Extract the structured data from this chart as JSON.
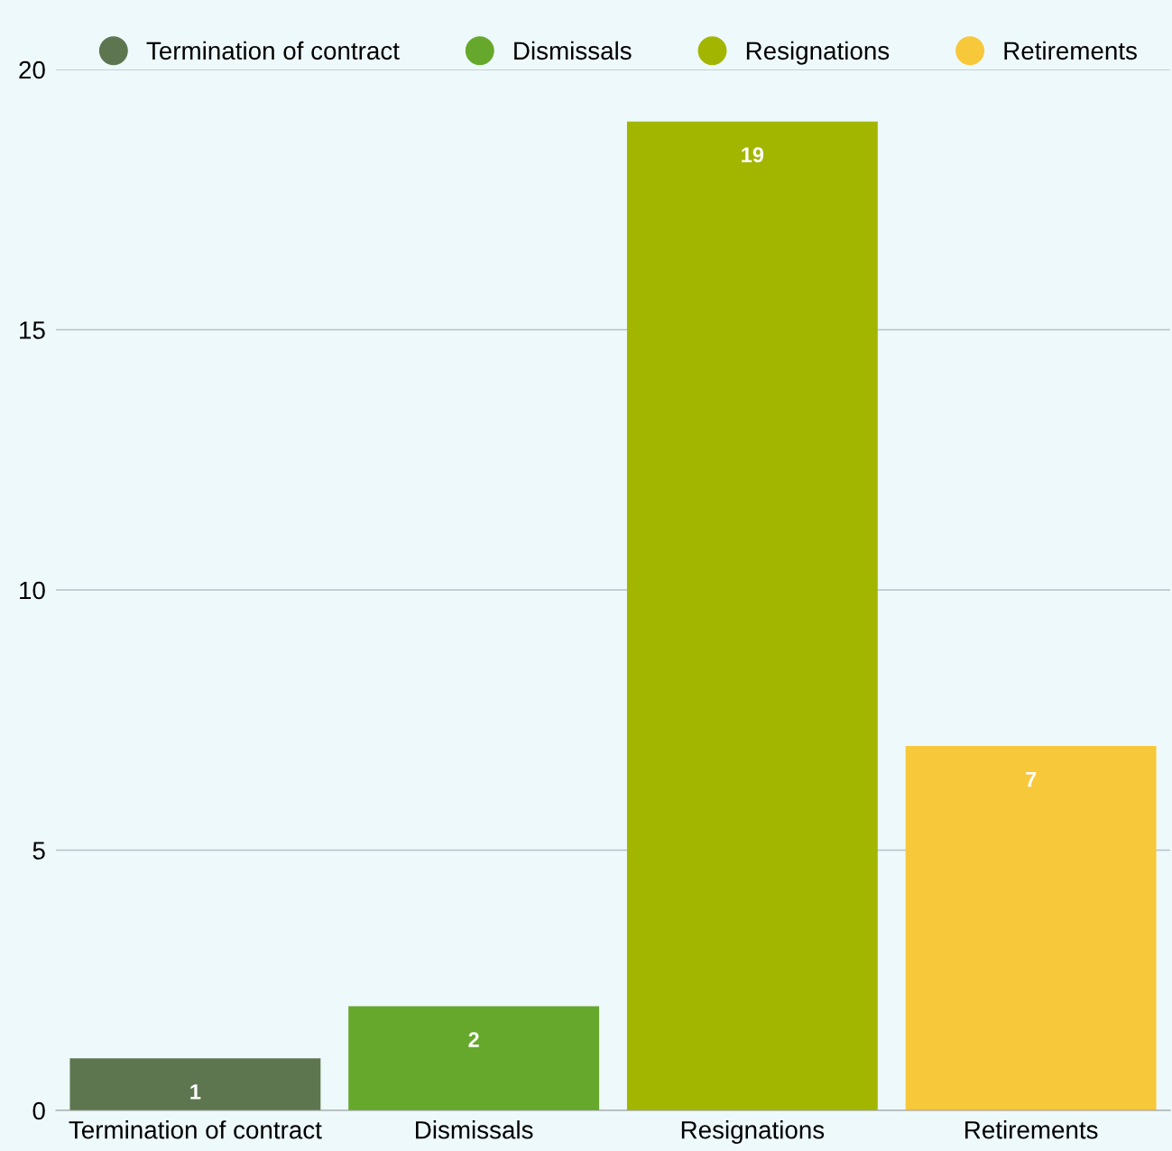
{
  "chart_data": {
    "type": "bar",
    "categories": [
      "Termination of contract",
      "Dismissals",
      "Resignations",
      "Retirements"
    ],
    "stacked": true,
    "series": [
      {
        "name": "Termination of contract",
        "color": "#5e7650",
        "values": [
          1,
          null,
          null,
          null
        ]
      },
      {
        "name": "Dismissals",
        "color": "#66a82c",
        "values": [
          null,
          2,
          null,
          null
        ]
      },
      {
        "name": "Resignations",
        "color": "#a2b600",
        "values": [
          null,
          null,
          19,
          null
        ]
      },
      {
        "name": "Retirements",
        "color": "#f7c83a",
        "values": [
          null,
          null,
          null,
          7
        ]
      }
    ],
    "ylim": [
      0,
      20
    ],
    "yticks": [
      0,
      5,
      10,
      15,
      20
    ],
    "grid": "y",
    "legend": "top",
    "marker": "circle",
    "data_labels": true
  }
}
